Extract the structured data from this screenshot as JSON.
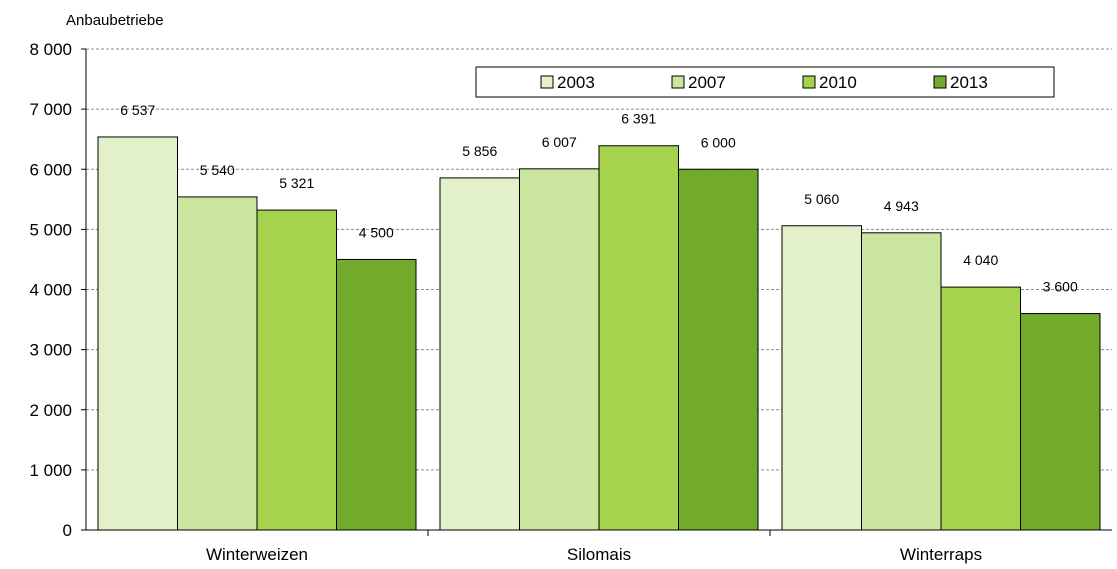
{
  "chart_data": {
    "type": "bar",
    "ylabel": "Anbaubetriebe",
    "xlabel": "",
    "ylim": [
      0,
      8000
    ],
    "yticks": [
      0,
      1000,
      2000,
      3000,
      4000,
      5000,
      6000,
      7000,
      8000
    ],
    "ytick_labels": [
      "0",
      "1 000",
      "2 000",
      "3 000",
      "4 000",
      "5 000",
      "6 000",
      "7 000",
      "8 000"
    ],
    "grid": true,
    "legend_position": "top-right",
    "categories": [
      "Winterweizen",
      "Silomais",
      "Winterraps"
    ],
    "series": [
      {
        "name": "2003",
        "color": "#e3f1cb",
        "values": [
          6537,
          5856,
          5060
        ],
        "labels": [
          "6 537",
          "5 856",
          "5 060"
        ]
      },
      {
        "name": "2007",
        "color": "#cae59d",
        "values": [
          5540,
          6007,
          4943
        ],
        "labels": [
          "5 540",
          "6 007",
          "4 943"
        ]
      },
      {
        "name": "2010",
        "color": "#a6d34e",
        "values": [
          5321,
          6391,
          4040
        ],
        "labels": [
          "5 321",
          "6 391",
          "4 040"
        ]
      },
      {
        "name": "2013",
        "color": "#72aa2c",
        "values": [
          4500,
          6000,
          3600
        ],
        "labels": [
          "4 500",
          "6 000",
          "3 600"
        ]
      }
    ]
  }
}
